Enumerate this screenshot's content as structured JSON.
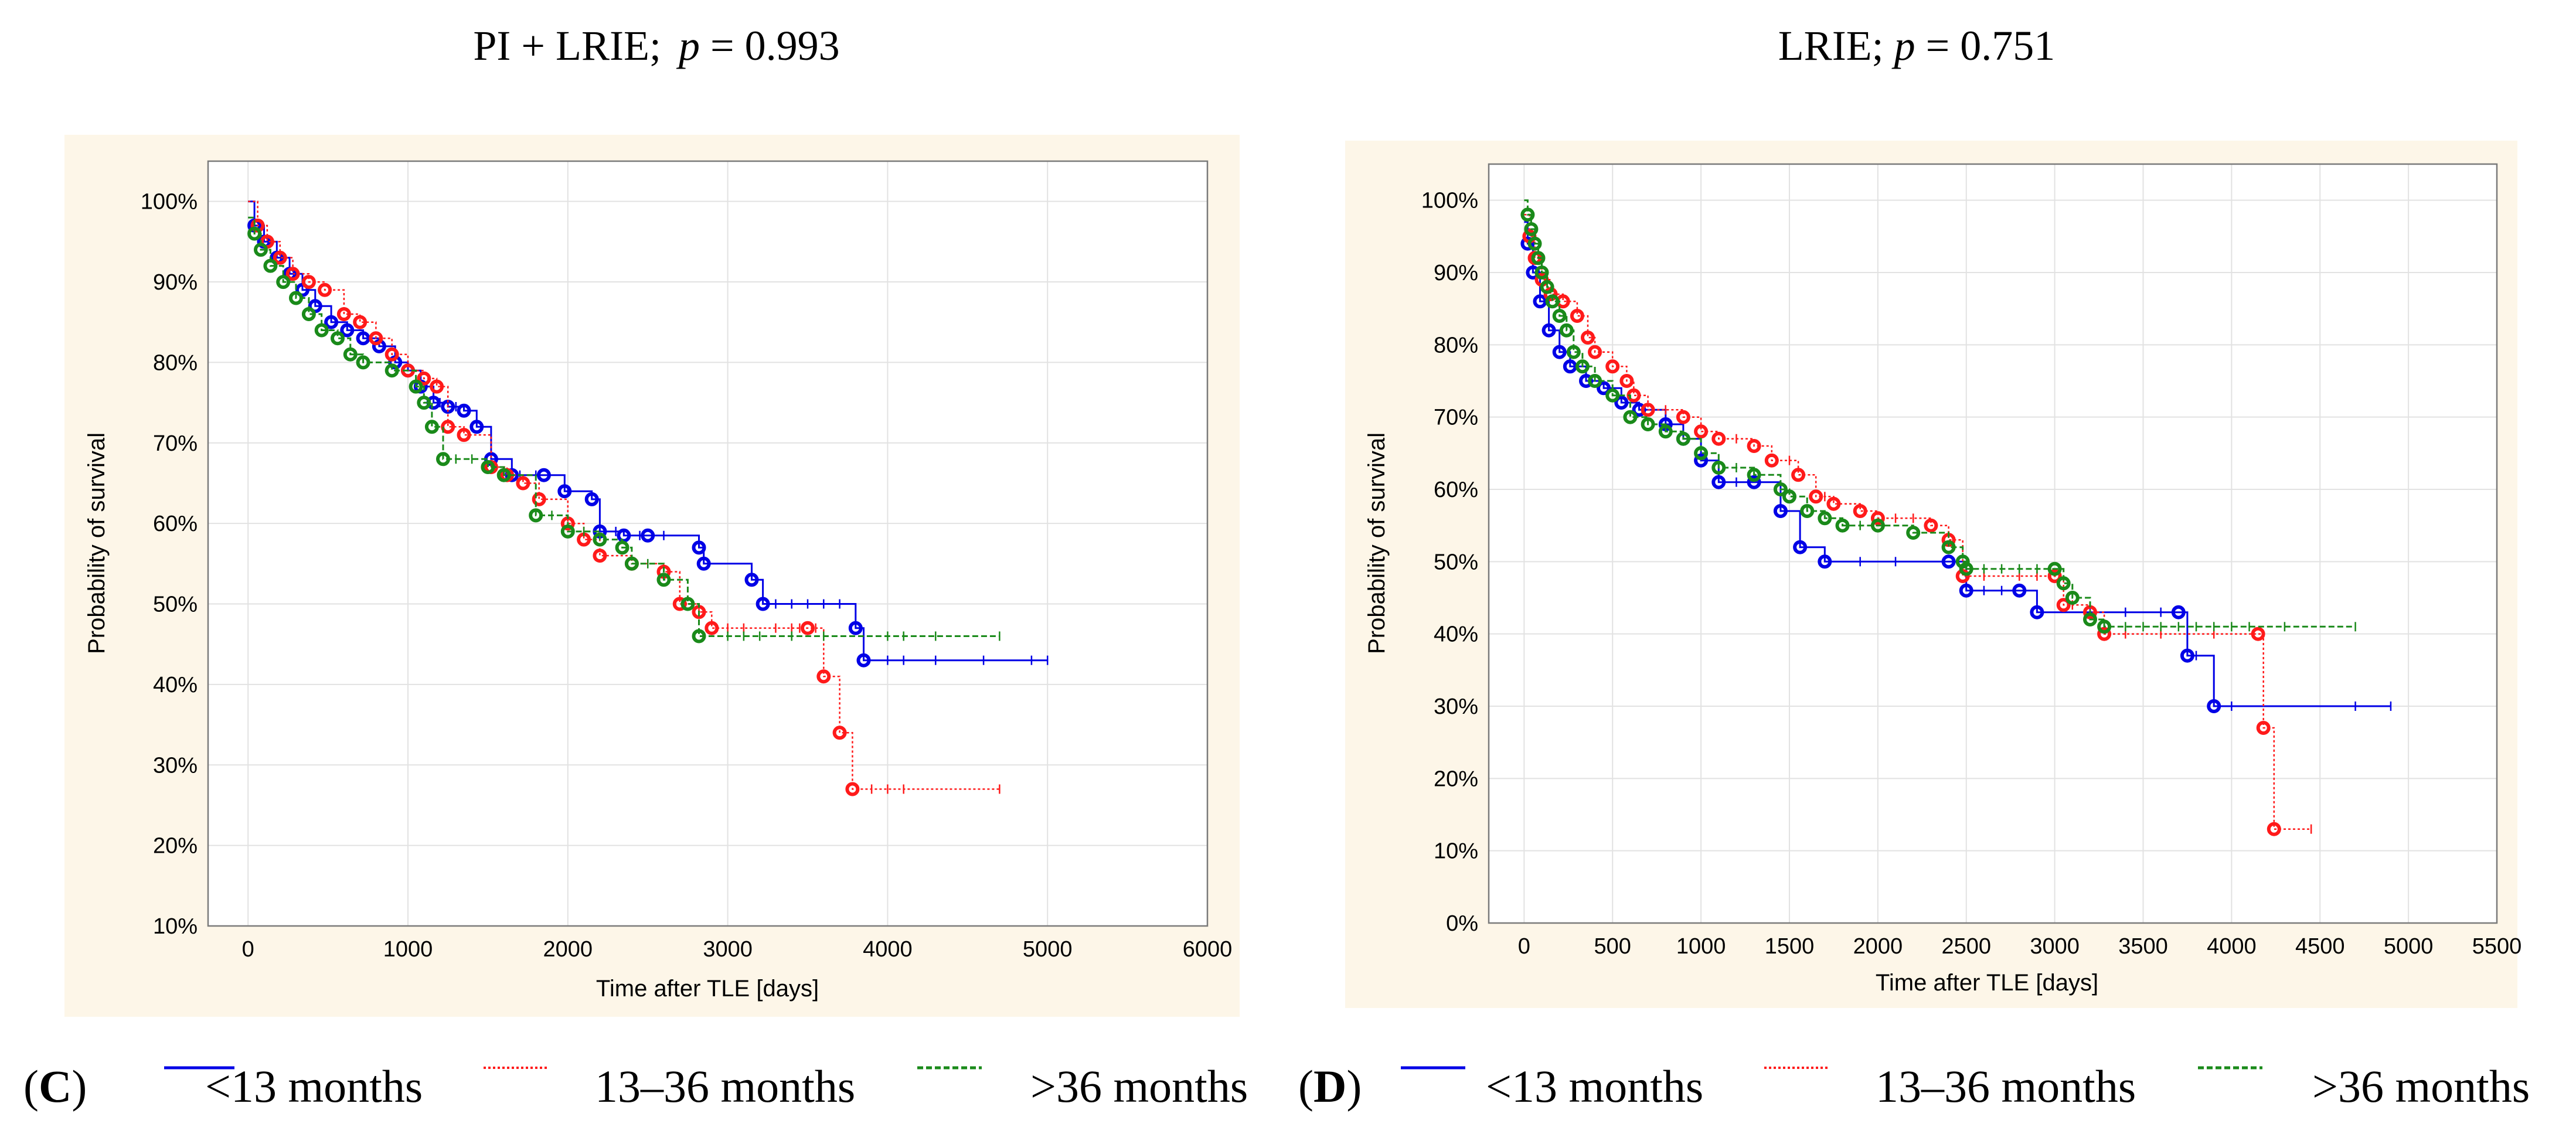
{
  "colors": {
    "panel_bg": "#fdf6e8",
    "plot_bg": "#ffffff",
    "grid": "#e2e2e2",
    "series": [
      "#0000e6",
      "#ff1a1a",
      "#1a8a1a"
    ]
  },
  "panels": [
    {
      "title_a": "PI + LRIE;",
      "title_p": "p",
      "title_b": " = 0.993",
      "legend_letter": "C"
    },
    {
      "title_a": "LRIE; ",
      "title_p": "p",
      "title_b": " = 0.751",
      "legend_letter": "D"
    }
  ],
  "legend": {
    "labels": [
      "<13 months",
      "13–36 months",
      ">36 months"
    ]
  },
  "chart_data": [
    {
      "type": "line",
      "title": "PI + LRIE; p = 0.993",
      "xlabel": "Time after TLE [days]",
      "ylabel": "Probability of survival",
      "xlim": [
        -250,
        6000
      ],
      "ylim": [
        10,
        105
      ],
      "x_ticks": [
        0,
        1000,
        2000,
        3000,
        4000,
        5000,
        6000
      ],
      "y_ticks": [
        10,
        20,
        30,
        40,
        50,
        60,
        70,
        80,
        90,
        100
      ],
      "y_tick_labels": [
        "10%",
        "20%",
        "30%",
        "40%",
        "50%",
        "60%",
        "70%",
        "80%",
        "90%",
        "100%"
      ],
      "grid": true,
      "legend_position": "bottom",
      "series": [
        {
          "name": "<13 months",
          "points": [
            [
              0,
              100
            ],
            [
              40,
              97
            ],
            [
              100,
              95
            ],
            [
              180,
              93
            ],
            [
              260,
              91
            ],
            [
              340,
              89
            ],
            [
              420,
              87
            ],
            [
              520,
              85
            ],
            [
              620,
              84
            ],
            [
              720,
              83
            ],
            [
              820,
              82
            ],
            [
              920,
              80
            ],
            [
              1000,
              79
            ],
            [
              1080,
              77
            ],
            [
              1160,
              75
            ],
            [
              1250,
              74.5
            ],
            [
              1350,
              74
            ],
            [
              1430,
              72
            ],
            [
              1520,
              68
            ],
            [
              1650,
              66
            ],
            [
              1850,
              66
            ],
            [
              1980,
              64
            ],
            [
              2150,
              63
            ],
            [
              2200,
              59
            ],
            [
              2350,
              58.5
            ],
            [
              2500,
              58.5
            ],
            [
              2820,
              57
            ],
            [
              2850,
              55
            ],
            [
              3150,
              53
            ],
            [
              3220,
              50
            ],
            [
              3800,
              47
            ],
            [
              3850,
              43
            ],
            [
              5000,
              43
            ]
          ],
          "censors": [
            1200,
            1300,
            1700,
            1800,
            2000,
            2300,
            2450,
            2600,
            3300,
            3400,
            3500,
            3600,
            3700,
            4000,
            4100,
            4300,
            4600,
            4900,
            5000
          ]
        },
        {
          "name": "13–36 months",
          "points": [
            [
              0,
              100
            ],
            [
              60,
              97
            ],
            [
              120,
              95
            ],
            [
              200,
              93
            ],
            [
              280,
              91
            ],
            [
              380,
              90
            ],
            [
              480,
              89
            ],
            [
              600,
              86
            ],
            [
              700,
              85
            ],
            [
              800,
              83
            ],
            [
              900,
              81
            ],
            [
              1000,
              79
            ],
            [
              1100,
              78
            ],
            [
              1180,
              77
            ],
            [
              1250,
              72
            ],
            [
              1350,
              71
            ],
            [
              1520,
              67
            ],
            [
              1620,
              66
            ],
            [
              1720,
              65
            ],
            [
              1820,
              63
            ],
            [
              2000,
              60
            ],
            [
              2100,
              58
            ],
            [
              2200,
              56
            ],
            [
              2400,
              55
            ],
            [
              2600,
              54
            ],
            [
              2700,
              50
            ],
            [
              2820,
              49
            ],
            [
              2900,
              47
            ],
            [
              3500,
              47
            ],
            [
              3600,
              41
            ],
            [
              3700,
              34
            ],
            [
              3780,
              27
            ],
            [
              4700,
              27
            ]
          ],
          "censors": [
            3000,
            3100,
            3300,
            3400,
            3450,
            3550,
            3900,
            4000,
            4100,
            4700
          ]
        },
        {
          "name": ">36 months",
          "points": [
            [
              0,
              98
            ],
            [
              40,
              96
            ],
            [
              80,
              94
            ],
            [
              140,
              92
            ],
            [
              220,
              90
            ],
            [
              300,
              88
            ],
            [
              380,
              86
            ],
            [
              460,
              84
            ],
            [
              560,
              83
            ],
            [
              640,
              81
            ],
            [
              720,
              80
            ],
            [
              900,
              79
            ],
            [
              1050,
              77
            ],
            [
              1100,
              75
            ],
            [
              1150,
              72
            ],
            [
              1220,
              68
            ],
            [
              1500,
              67
            ],
            [
              1600,
              66
            ],
            [
              1800,
              61
            ],
            [
              2000,
              59
            ],
            [
              2200,
              58
            ],
            [
              2340,
              57
            ],
            [
              2400,
              55
            ],
            [
              2600,
              53
            ],
            [
              2750,
              50
            ],
            [
              2820,
              46
            ],
            [
              4700,
              46
            ]
          ],
          "censors": [
            1300,
            1400,
            1900,
            2100,
            2500,
            3000,
            3100,
            3200,
            3400,
            3600,
            4000,
            4100,
            4300,
            4700
          ]
        }
      ]
    },
    {
      "type": "line",
      "title": "LRIE; p = 0.751",
      "xlabel": "Time after TLE [days]",
      "ylabel": "Probability of survival",
      "xlim": [
        -200,
        5500
      ],
      "ylim": [
        0,
        105
      ],
      "x_ticks": [
        0,
        500,
        1000,
        1500,
        2000,
        2500,
        3000,
        3500,
        4000,
        4500,
        5000,
        5500
      ],
      "y_ticks": [
        0,
        10,
        20,
        30,
        40,
        50,
        60,
        70,
        80,
        90,
        100
      ],
      "y_tick_labels": [
        "0%",
        "10%",
        "20%",
        "30%",
        "40%",
        "50%",
        "60%",
        "70%",
        "80%",
        "90%",
        "100%"
      ],
      "grid": true,
      "legend_position": "bottom",
      "series": [
        {
          "name": "<13 months",
          "points": [
            [
              0,
              97
            ],
            [
              20,
              94
            ],
            [
              50,
              90
            ],
            [
              90,
              86
            ],
            [
              140,
              82
            ],
            [
              200,
              79
            ],
            [
              260,
              77
            ],
            [
              350,
              75
            ],
            [
              450,
              74
            ],
            [
              550,
              72
            ],
            [
              650,
              71
            ],
            [
              800,
              69
            ],
            [
              900,
              67
            ],
            [
              1000,
              64
            ],
            [
              1100,
              61
            ],
            [
              1300,
              61
            ],
            [
              1450,
              57
            ],
            [
              1560,
              52
            ],
            [
              1700,
              50
            ],
            [
              2400,
              50
            ],
            [
              2500,
              46
            ],
            [
              2800,
              46
            ],
            [
              2900,
              43
            ],
            [
              3700,
              43
            ],
            [
              3750,
              37
            ],
            [
              3900,
              30
            ],
            [
              4900,
              30
            ]
          ],
          "censors": [
            1200,
            1900,
            2100,
            2600,
            2700,
            3200,
            3400,
            3600,
            3800,
            4000,
            4700,
            4900
          ]
        },
        {
          "name": "13–36 months",
          "points": [
            [
              0,
              98
            ],
            [
              30,
              95
            ],
            [
              60,
              92
            ],
            [
              100,
              89
            ],
            [
              150,
              87
            ],
            [
              220,
              86
            ],
            [
              300,
              84
            ],
            [
              360,
              81
            ],
            [
              400,
              79
            ],
            [
              500,
              77
            ],
            [
              580,
              75
            ],
            [
              620,
              73
            ],
            [
              700,
              71
            ],
            [
              900,
              70
            ],
            [
              1000,
              68
            ],
            [
              1100,
              67
            ],
            [
              1300,
              66
            ],
            [
              1400,
              64
            ],
            [
              1550,
              62
            ],
            [
              1650,
              59
            ],
            [
              1750,
              58
            ],
            [
              1900,
              57
            ],
            [
              2000,
              56
            ],
            [
              2300,
              55
            ],
            [
              2400,
              53
            ],
            [
              2480,
              48
            ],
            [
              3000,
              48
            ],
            [
              3050,
              44
            ],
            [
              3200,
              43
            ],
            [
              3280,
              40
            ],
            [
              4150,
              40
            ],
            [
              4180,
              27
            ],
            [
              4240,
              13
            ],
            [
              4450,
              13
            ]
          ],
          "censors": [
            800,
            1200,
            1500,
            1700,
            2100,
            2200,
            2600,
            2800,
            2900,
            3100,
            3400,
            3600,
            3900,
            4450
          ]
        },
        {
          "name": ">36 months",
          "points": [
            [
              0,
              100
            ],
            [
              20,
              98
            ],
            [
              40,
              96
            ],
            [
              60,
              94
            ],
            [
              80,
              92
            ],
            [
              100,
              90
            ],
            [
              130,
              88
            ],
            [
              160,
              86
            ],
            [
              200,
              84
            ],
            [
              240,
              82
            ],
            [
              280,
              79
            ],
            [
              330,
              77
            ],
            [
              400,
              75
            ],
            [
              500,
              73
            ],
            [
              600,
              70
            ],
            [
              700,
              69
            ],
            [
              800,
              68
            ],
            [
              900,
              67
            ],
            [
              1000,
              65
            ],
            [
              1100,
              63
            ],
            [
              1300,
              62
            ],
            [
              1450,
              60
            ],
            [
              1500,
              59
            ],
            [
              1600,
              57
            ],
            [
              1700,
              56
            ],
            [
              1800,
              55
            ],
            [
              2000,
              55
            ],
            [
              2200,
              54
            ],
            [
              2400,
              52
            ],
            [
              2480,
              50
            ],
            [
              2500,
              49
            ],
            [
              3000,
              49
            ],
            [
              3050,
              47
            ],
            [
              3100,
              45
            ],
            [
              3200,
              42
            ],
            [
              3280,
              41
            ],
            [
              4700,
              41
            ]
          ],
          "censors": [
            1200,
            1900,
            2600,
            2700,
            2800,
            2900,
            3400,
            3500,
            3600,
            3700,
            3800,
            3900,
            4000,
            4100,
            4300,
            4700
          ]
        }
      ]
    }
  ]
}
